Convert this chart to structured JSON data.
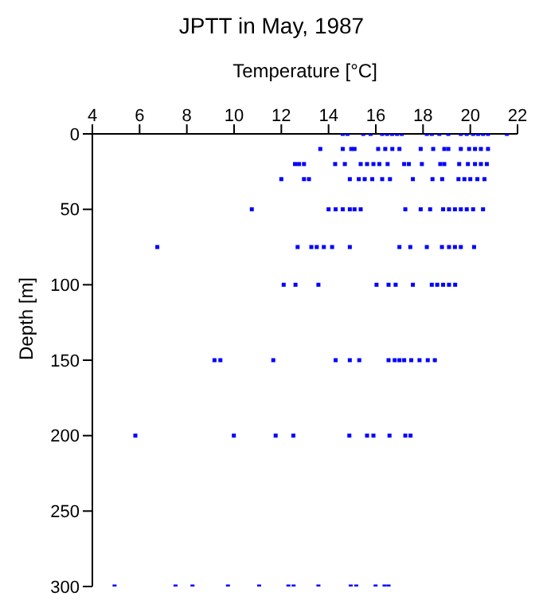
{
  "chart_data": {
    "type": "scatter",
    "title": "JPTT in May, 1987",
    "xlabel": "Temperature [°C]",
    "ylabel": "Depth [m]",
    "xlim": [
      4,
      22
    ],
    "xticks": [
      4,
      6,
      8,
      10,
      12,
      14,
      16,
      18,
      20,
      22
    ],
    "ylim": [
      300,
      0
    ],
    "yticks": [
      0,
      50,
      100,
      150,
      200,
      250,
      300
    ],
    "grid": false,
    "legend": false,
    "marker": "square",
    "series": [
      {
        "color": "#0000ff",
        "x": [
          14.6,
          14.8,
          15.47,
          15.78,
          16.27,
          16.48,
          16.69,
          16.9,
          17.1,
          18.16,
          18.37,
          18.69,
          19.07,
          19.6,
          19.85,
          20.12,
          20.33,
          20.54,
          20.75,
          21.55,
          13.65,
          14.6,
          14.96,
          15.1,
          16.1,
          16.4,
          16.7,
          17.0,
          17.9,
          18.43,
          18.9,
          19.07,
          19.6,
          19.95,
          20.2,
          20.45,
          20.75,
          12.58,
          12.75,
          12.96,
          14.28,
          14.69,
          15.36,
          15.63,
          15.9,
          16.15,
          16.5,
          17.2,
          17.4,
          17.95,
          18.73,
          18.9,
          19.53,
          19.9,
          20.2,
          20.45,
          20.7,
          12.0,
          12.96,
          13.17,
          14.9,
          15.28,
          15.53,
          15.85,
          16.27,
          16.6,
          17.57,
          18.4,
          18.81,
          19.5,
          19.75,
          20.0,
          20.3,
          20.6,
          10.75,
          14.0,
          14.3,
          14.6,
          14.9,
          15.1,
          15.36,
          17.25,
          17.9,
          18.3,
          18.85,
          19.1,
          19.35,
          19.6,
          19.85,
          20.12,
          20.54,
          6.75,
          12.69,
          13.27,
          13.5,
          13.8,
          14.15,
          14.9,
          17.0,
          17.46,
          18.16,
          18.8,
          19.1,
          19.35,
          19.6,
          20.16,
          12.1,
          12.6,
          13.57,
          16.03,
          16.54,
          16.84,
          17.57,
          18.37,
          18.6,
          18.85,
          19.1,
          19.36,
          9.17,
          9.42,
          11.66,
          14.3,
          14.9,
          15.3,
          16.54,
          16.8,
          17.0,
          17.2,
          17.5,
          17.85,
          18.2,
          18.5,
          5.82,
          9.99,
          11.76,
          12.51,
          14.88,
          15.63,
          15.9,
          16.58,
          17.25,
          17.47,
          4.94,
          7.52,
          8.24,
          9.74,
          11.06,
          12.3,
          12.52,
          13.57,
          14.94,
          15.17,
          15.99,
          16.37,
          16.54
        ],
        "values": [
          0,
          0,
          0,
          0,
          0,
          0,
          0,
          0,
          0,
          0,
          0,
          0,
          0,
          0,
          0,
          0,
          0,
          0,
          0,
          0,
          10,
          10,
          10,
          10,
          10,
          10,
          10,
          10,
          10,
          10,
          10,
          10,
          10,
          10,
          10,
          10,
          10,
          20,
          20,
          20,
          20,
          20,
          20,
          20,
          20,
          20,
          20,
          20,
          20,
          20,
          20,
          20,
          20,
          20,
          20,
          20,
          20,
          30,
          30,
          30,
          30,
          30,
          30,
          30,
          30,
          30,
          30,
          30,
          30,
          30,
          30,
          30,
          30,
          30,
          50,
          50,
          50,
          50,
          50,
          50,
          50,
          50,
          50,
          50,
          50,
          50,
          50,
          50,
          50,
          50,
          50,
          75,
          75,
          75,
          75,
          75,
          75,
          75,
          75,
          75,
          75,
          75,
          75,
          75,
          75,
          75,
          100,
          100,
          100,
          100,
          100,
          100,
          100,
          100,
          100,
          100,
          100,
          100,
          150,
          150,
          150,
          150,
          150,
          150,
          150,
          150,
          150,
          150,
          150,
          150,
          150,
          150,
          200,
          200,
          200,
          200,
          200,
          200,
          200,
          200,
          200,
          200,
          300,
          300,
          300,
          300,
          300,
          300,
          300,
          300,
          300,
          300,
          300,
          300,
          300
        ]
      }
    ]
  }
}
